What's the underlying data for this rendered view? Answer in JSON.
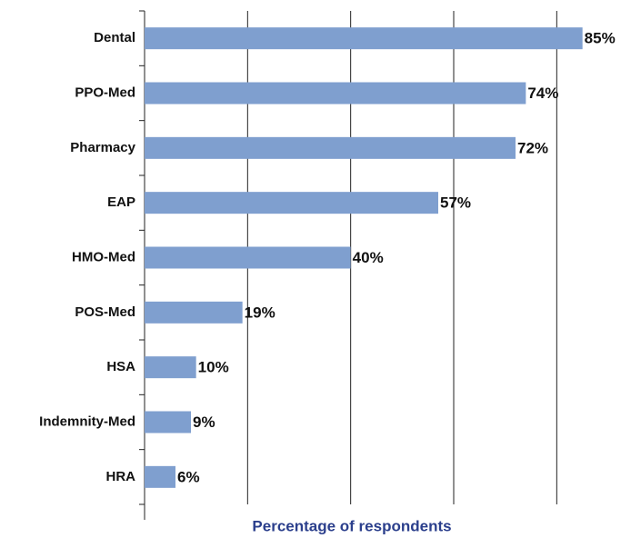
{
  "chart_data": {
    "type": "bar",
    "orientation": "horizontal",
    "x_label": "Percentage of respondents",
    "categories": [
      "Dental",
      "PPO-Med",
      "Pharmacy",
      "EAP",
      "HMO-Med",
      "POS-Med",
      "HSA",
      "Indemnity-Med",
      "HRA"
    ],
    "values": [
      85,
      74,
      72,
      57,
      40,
      19,
      10,
      9,
      6
    ],
    "value_labels": [
      "85%",
      "74%",
      "72%",
      "57%",
      "40%",
      "19%",
      "10%",
      "9%",
      "6%"
    ],
    "color": "#7f9fcf",
    "xlim": [
      0,
      90
    ],
    "xticks": [
      0,
      20,
      40,
      60,
      80
    ],
    "grid": true
  }
}
